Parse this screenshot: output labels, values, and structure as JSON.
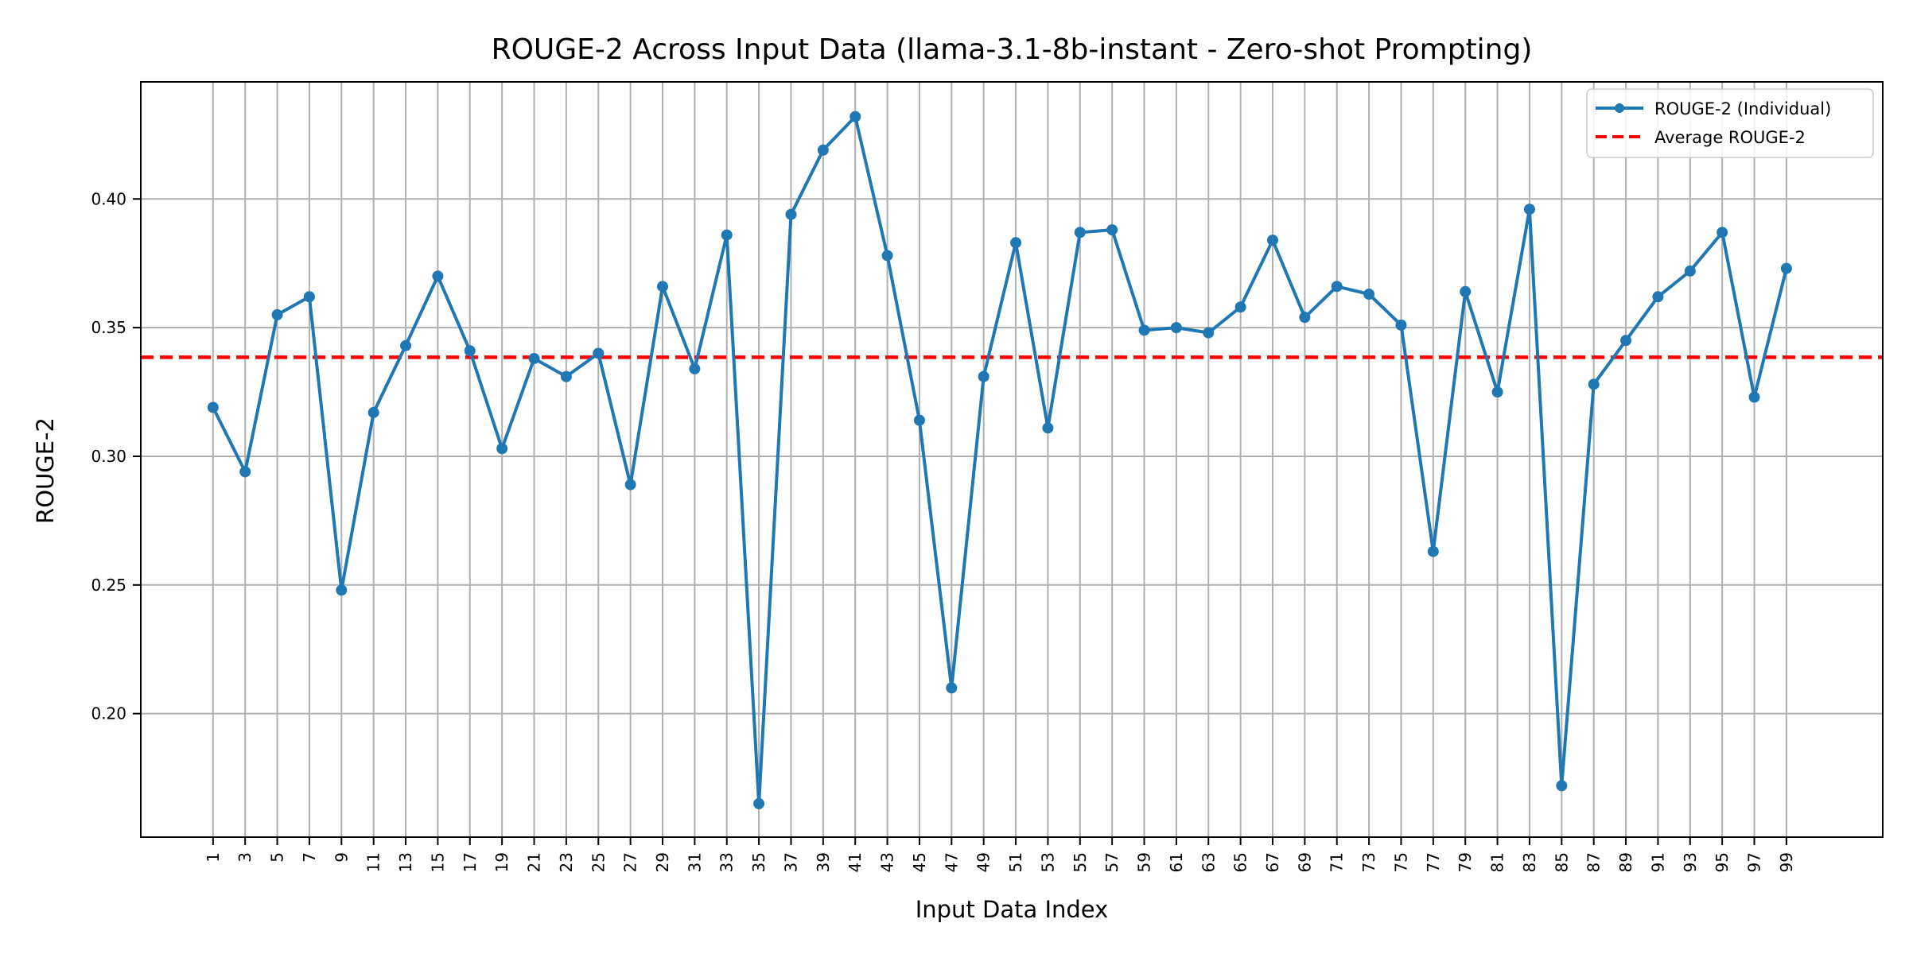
{
  "chart_data": {
    "type": "line",
    "title": "ROUGE-2 Across Input Data (llama-3.1-8b-instant - Zero-shot Prompting)",
    "xlabel": "Input Data Index",
    "ylabel": "ROUGE-2",
    "xlim": [
      -3.5,
      105
    ],
    "ylim": [
      0.152,
      0.4455
    ],
    "grid": true,
    "legend_position": "top-right",
    "x": [
      1,
      3,
      5,
      7,
      9,
      11,
      13,
      15,
      17,
      19,
      21,
      23,
      25,
      27,
      29,
      31,
      33,
      35,
      37,
      39,
      41,
      43,
      45,
      47,
      49,
      51,
      53,
      55,
      57,
      59,
      61,
      63,
      65,
      67,
      69,
      71,
      73,
      75,
      77,
      79,
      81,
      83,
      85,
      87,
      89,
      91,
      93,
      95,
      97,
      99
    ],
    "x_ticks": [
      "1",
      "3",
      "5",
      "7",
      "9",
      "11",
      "13",
      "15",
      "17",
      "19",
      "21",
      "23",
      "25",
      "27",
      "29",
      "31",
      "33",
      "35",
      "37",
      "39",
      "41",
      "43",
      "45",
      "47",
      "49",
      "51",
      "53",
      "55",
      "57",
      "59",
      "61",
      "63",
      "65",
      "67",
      "69",
      "71",
      "73",
      "75",
      "77",
      "79",
      "81",
      "83",
      "85",
      "87",
      "89",
      "91",
      "93",
      "95",
      "97",
      "99"
    ],
    "y_ticks": [
      0.2,
      0.25,
      0.3,
      0.35,
      0.4
    ],
    "y_tick_labels": [
      "0.20",
      "0.25",
      "0.30",
      "0.35",
      "0.40"
    ],
    "series": [
      {
        "name": "ROUGE-2 (Individual)",
        "color": "#1f77b4",
        "style": "solid-with-markers",
        "values": [
          0.319,
          0.294,
          0.355,
          0.362,
          0.248,
          0.317,
          0.343,
          0.37,
          0.341,
          0.303,
          0.338,
          0.331,
          0.34,
          0.289,
          0.366,
          0.334,
          0.386,
          0.165,
          0.394,
          0.419,
          0.432,
          0.378,
          0.314,
          0.21,
          0.331,
          0.383,
          0.311,
          0.387,
          0.388,
          0.349,
          0.35,
          0.348,
          0.358,
          0.384,
          0.354,
          0.366,
          0.363,
          0.351,
          0.263,
          0.364,
          0.325,
          0.396,
          0.172,
          0.328,
          0.345,
          0.362,
          0.372,
          0.387,
          0.323,
          0.373
        ]
      },
      {
        "name": "Average ROUGE-2",
        "color": "#ff0000",
        "style": "dashed",
        "value": 0.3385
      }
    ]
  }
}
